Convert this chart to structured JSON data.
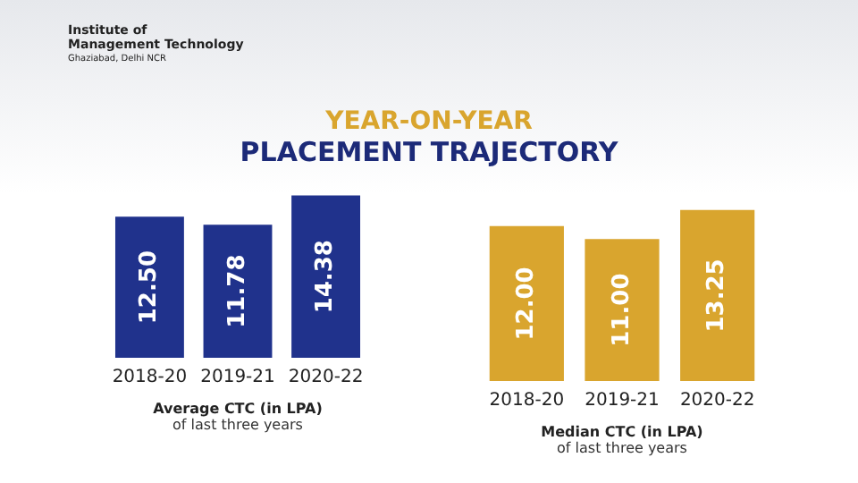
{
  "chart_data": [
    {
      "type": "bar",
      "title": "YEAR-ON-YEAR",
      "subtitle": "PLACEMENT TRAJECTORY",
      "categories": [
        "2018-20",
        "2019-21",
        "2020-22"
      ],
      "values": [
        12.5,
        11.78,
        14.38
      ],
      "value_labels": [
        "12.50",
        "11.78",
        "14.38"
      ],
      "color": "#20328c",
      "xlabel": "Average CTC (in LPA)",
      "annotations": [
        "of last three years",
        "Institute of",
        "Management Technology",
        "Ghaziabad, Delhi NCR"
      ],
      "grid": false,
      "legend": false
    },
    {
      "type": "bar",
      "categories": [
        "2018-20",
        "2019-21",
        "2020-22"
      ],
      "values": [
        12.0,
        11.0,
        13.25
      ],
      "value_labels": [
        "12.00",
        "11.00",
        "13.25"
      ],
      "color": "#d9a52e",
      "xlabel": "Median CTC (in LPA)",
      "annotations": [
        "of last three years"
      ],
      "grid": false,
      "legend": false
    }
  ]
}
